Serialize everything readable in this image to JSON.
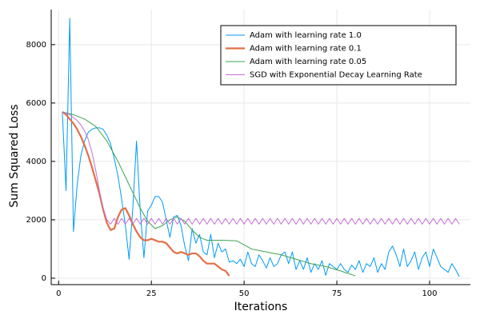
{
  "chart_data": {
    "type": "line",
    "xlabel": "Iterations",
    "ylabel": "Sum Squared Loss",
    "xlim": [
      -2,
      111
    ],
    "ylim": [
      -220,
      9200
    ],
    "xticks": [
      0,
      25,
      50,
      75,
      100
    ],
    "yticks": [
      0,
      2000,
      4000,
      6000,
      8000
    ],
    "grid": true,
    "legend": "upper right",
    "series": [
      {
        "name": "Adam with learning rate 1.0",
        "color": "#009af9",
        "linewidth": 1,
        "x": [
          1,
          2,
          3,
          4,
          5,
          6,
          7,
          8,
          9,
          10,
          11,
          12,
          13,
          14,
          15,
          16,
          17,
          18,
          19,
          20,
          21,
          22,
          23,
          24,
          25,
          26,
          27,
          28,
          29,
          30,
          31,
          32,
          33,
          34,
          35,
          36,
          37,
          38,
          39,
          40,
          41,
          42,
          43,
          44,
          45,
          46,
          47,
          48,
          49,
          50,
          51,
          52,
          53,
          54,
          55,
          56,
          57,
          58,
          59,
          60,
          61,
          62,
          63,
          64,
          65,
          66,
          67,
          68,
          69,
          70,
          71,
          72,
          73,
          74,
          75,
          76,
          77,
          78,
          79,
          80,
          81,
          82,
          83,
          84,
          85,
          86,
          87,
          88,
          89,
          90,
          91,
          92,
          93,
          94,
          95,
          96,
          97,
          98,
          99,
          100,
          101,
          102,
          103,
          104,
          105,
          106,
          107,
          108
        ],
        "values": [
          5700,
          3000,
          8900,
          1600,
          3200,
          4200,
          4700,
          5000,
          5100,
          5150,
          5150,
          5100,
          4900,
          4600,
          4100,
          3500,
          2700,
          1800,
          650,
          2400,
          4700,
          2300,
          700,
          2300,
          2500,
          2800,
          2800,
          2600,
          2000,
          1400,
          2100,
          2150,
          1800,
          1100,
          600,
          1700,
          1200,
          1500,
          900,
          800,
          1500,
          700,
          1200,
          900,
          1000,
          550,
          600,
          500,
          650,
          400,
          900,
          500,
          400,
          800,
          600,
          350,
          700,
          400,
          500,
          800,
          900,
          500,
          900,
          300,
          600,
          300,
          700,
          200,
          500,
          300,
          600,
          100,
          500,
          400,
          300,
          500,
          300,
          200,
          450,
          300,
          600,
          200,
          500,
          400,
          700,
          200,
          500,
          300,
          900,
          1100,
          800,
          400,
          1000,
          400,
          600,
          900,
          300,
          700,
          900,
          400,
          1000,
          700,
          400,
          300,
          200,
          500,
          300,
          50
        ]
      },
      {
        "name": "Adam with learning rate 0.1",
        "color": "#e26f46",
        "linewidth": 2.2,
        "x": [
          1,
          2,
          3,
          4,
          5,
          6,
          7,
          8,
          9,
          10,
          11,
          12,
          13,
          14,
          15,
          16,
          17,
          18,
          19,
          20,
          21,
          22,
          23,
          24,
          25,
          26,
          27,
          28,
          29,
          30,
          31,
          32,
          33,
          34,
          35,
          36,
          37,
          38,
          39,
          40,
          41,
          42,
          43,
          44,
          45,
          46
        ],
        "values": [
          5700,
          5600,
          5450,
          5300,
          5100,
          4850,
          4550,
          4200,
          3800,
          3350,
          2900,
          2350,
          1900,
          1650,
          1700,
          2100,
          2350,
          2400,
          2150,
          1850,
          1600,
          1400,
          1300,
          1300,
          1350,
          1300,
          1250,
          1250,
          1200,
          1050,
          900,
          850,
          900,
          850,
          800,
          850,
          850,
          750,
          600,
          500,
          500,
          500,
          400,
          300,
          250,
          80
        ]
      },
      {
        "name": "Adam with learning rate 0.05",
        "color": "#3da44d",
        "linewidth": 1,
        "x": [
          1,
          4,
          7,
          10,
          13,
          16,
          19,
          22,
          24,
          26,
          28,
          30,
          32,
          34,
          36,
          38,
          40,
          44,
          48,
          52,
          56,
          60,
          64,
          68,
          72,
          76,
          80
        ],
        "values": [
          5700,
          5600,
          5450,
          5200,
          4700,
          4000,
          3200,
          2400,
          1950,
          1700,
          1800,
          2000,
          2100,
          1950,
          1650,
          1400,
          1300,
          1300,
          1280,
          1000,
          900,
          800,
          650,
          500,
          400,
          250,
          80
        ]
      },
      {
        "name": "SGD with Exponential Decay Learning Rate",
        "color": "#c271d2",
        "linewidth": 1,
        "x": [
          1,
          2,
          3,
          4,
          5,
          6,
          7,
          8,
          9,
          10,
          11,
          12,
          13,
          14,
          15,
          16,
          17,
          18,
          19,
          20,
          21,
          22,
          23,
          24,
          25,
          26,
          27,
          28,
          29,
          30,
          31,
          32,
          33,
          34,
          35,
          36,
          37,
          38,
          39,
          40,
          41,
          42,
          43,
          44,
          45,
          46,
          47,
          48,
          49,
          50,
          51,
          52,
          53,
          54,
          55,
          56,
          57,
          58,
          59,
          60,
          61,
          62,
          63,
          64,
          65,
          66,
          67,
          68,
          69,
          70,
          71,
          72,
          73,
          74,
          75,
          76,
          77,
          78,
          79,
          80,
          81,
          82,
          83,
          84,
          85,
          86,
          87,
          88,
          89,
          90,
          91,
          92,
          93,
          94,
          95,
          96,
          97,
          98,
          99,
          100,
          101,
          102,
          103,
          104,
          105,
          106,
          107,
          108
        ],
        "values": [
          5700,
          5650,
          5600,
          5500,
          5400,
          5250,
          5050,
          4750,
          4300,
          3700,
          3000,
          2400,
          2000,
          1850,
          2050,
          1850,
          2050,
          1850,
          2050,
          1850,
          2050,
          1850,
          2050,
          1850,
          2050,
          1850,
          2050,
          1850,
          2050,
          1850,
          2050,
          1850,
          2050,
          1850,
          2050,
          1850,
          2050,
          1850,
          2050,
          1850,
          2050,
          1850,
          2050,
          1850,
          2050,
          1850,
          2050,
          1850,
          2050,
          1850,
          2050,
          1850,
          2050,
          1850,
          2050,
          1850,
          2050,
          1850,
          2050,
          1850,
          2050,
          1850,
          2050,
          1850,
          2050,
          1850,
          2050,
          1850,
          2050,
          1850,
          2050,
          1850,
          2050,
          1850,
          2050,
          1850,
          2050,
          1850,
          2050,
          1850,
          2050,
          1850,
          2050,
          1850,
          2050,
          1850,
          2050,
          1850,
          2050,
          1850,
          2050,
          1850,
          2050,
          1850,
          2050,
          1850,
          2050,
          1850,
          2050,
          1850,
          2050,
          1850,
          2050,
          1850,
          2050,
          1850,
          2050,
          1850
        ]
      }
    ]
  }
}
